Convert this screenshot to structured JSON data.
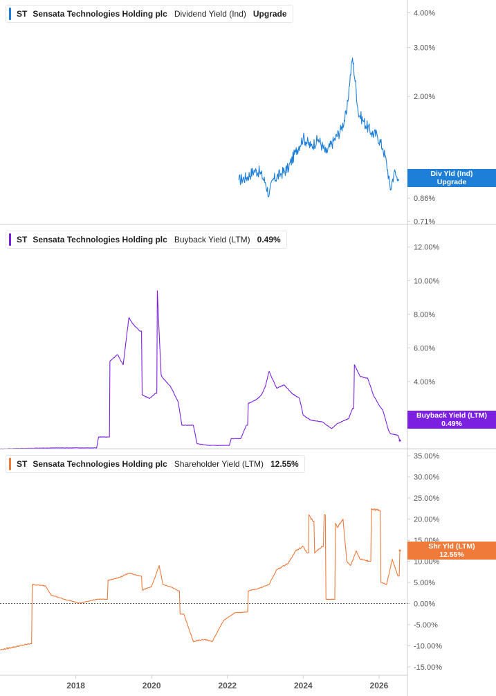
{
  "chart_data": [
    {
      "type": "line",
      "ticker": "ST",
      "company": "Sensata Technologies Holding plc",
      "metric": "Dividend Yield (Ind)",
      "value_label": "Upgrade",
      "tag_line1": "Div Yld (Ind)",
      "tag_line2": "Upgrade",
      "color": "#1e7fd8",
      "y_scale": "log",
      "ylim": [
        0.7,
        4.2
      ],
      "yticks": [
        "4.00%",
        "3.00%",
        "2.00%",
        "0.86%",
        "0.71%"
      ],
      "ytick_values": [
        4.0,
        3.0,
        2.0,
        0.86,
        0.71
      ],
      "x": [
        2022.3,
        2022.5,
        2022.7,
        2022.85,
        2023.0,
        2023.1,
        2023.2,
        2023.4,
        2023.6,
        2023.8,
        2024.0,
        2024.2,
        2024.4,
        2024.6,
        2024.8,
        2025.0,
        2025.15,
        2025.3,
        2025.45,
        2025.6,
        2025.8,
        2025.95,
        2026.1,
        2026.2,
        2026.3,
        2026.4,
        2026.5
      ],
      "values": [
        1.0,
        1.02,
        1.08,
        1.07,
        0.98,
        0.88,
        1.0,
        1.05,
        1.1,
        1.26,
        1.42,
        1.32,
        1.4,
        1.25,
        1.38,
        1.52,
        1.75,
        2.75,
        1.75,
        1.62,
        1.48,
        1.45,
        1.3,
        1.15,
        0.92,
        1.07,
        1.0
      ]
    },
    {
      "type": "line",
      "ticker": "ST",
      "company": "Sensata Technologies Holding plc",
      "metric": "Buyback Yield (LTM)",
      "value_label": "0.49%",
      "tag_line1": "Buyback Yield (LTM)",
      "tag_line2": "0.49%",
      "color": "#7b1fe0",
      "ylim": [
        0.0,
        12.4
      ],
      "yticks": [
        "12.00%",
        "10.00%",
        "8.00%",
        "6.00%",
        "4.00%",
        "2.00%"
      ],
      "ytick_values": [
        12,
        10,
        8,
        6,
        4,
        2
      ],
      "x": [
        2016.0,
        2017.5,
        2018.55,
        2018.6,
        2018.85,
        2018.9,
        2019.1,
        2019.25,
        2019.4,
        2019.55,
        2019.7,
        2019.75,
        2019.95,
        2020.1,
        2020.15,
        2020.25,
        2020.3,
        2020.5,
        2020.7,
        2020.8,
        2021.1,
        2021.2,
        2021.5,
        2022.05,
        2022.1,
        2022.35,
        2022.5,
        2022.55,
        2022.75,
        2022.9,
        2023.0,
        2023.1,
        2023.3,
        2023.5,
        2023.7,
        2023.9,
        2024.0,
        2024.2,
        2024.5,
        2024.75,
        2024.9,
        2025.2,
        2025.3,
        2025.35,
        2025.5,
        2025.7,
        2025.85,
        2026.0,
        2026.1,
        2026.25,
        2026.3,
        2026.5,
        2026.55
      ],
      "values": [
        0.0,
        0.05,
        0.05,
        0.7,
        0.7,
        5.2,
        5.6,
        5.0,
        7.8,
        7.3,
        7.0,
        3.2,
        3.0,
        3.3,
        9.4,
        4.4,
        4.2,
        3.7,
        2.8,
        1.4,
        1.4,
        0.3,
        0.2,
        0.2,
        0.6,
        0.6,
        1.4,
        2.7,
        2.9,
        3.2,
        3.7,
        4.6,
        3.6,
        3.8,
        3.3,
        3.0,
        2.0,
        1.7,
        1.6,
        1.2,
        1.5,
        1.8,
        2.4,
        5.0,
        4.3,
        4.2,
        3.2,
        2.6,
        2.3,
        1.1,
        0.9,
        0.8,
        0.49
      ]
    },
    {
      "type": "line",
      "ticker": "ST",
      "company": "Sensata Technologies Holding plc",
      "metric": "Shareholder Yield (LTM)",
      "value_label": "12.55%",
      "tag_line1": "Shr Yld (LTM)",
      "tag_line2": "12.55%",
      "color": "#ef7a3a",
      "ylim": [
        -16,
        36
      ],
      "yticks": [
        "35.00%",
        "30.00%",
        "25.00%",
        "20.00%",
        "15.00%",
        "10.00%",
        "5.00%",
        "0.00%",
        "-5.00%",
        "-10.00%",
        "-15.00%"
      ],
      "ytick_values": [
        35,
        30,
        25,
        20,
        15,
        10,
        5,
        0,
        -5,
        -10,
        -15
      ],
      "x": [
        2016.0,
        2016.8,
        2016.85,
        2017.2,
        2017.35,
        2017.7,
        2018.1,
        2018.55,
        2018.8,
        2018.85,
        2019.1,
        2019.4,
        2019.7,
        2019.75,
        2020.0,
        2020.2,
        2020.3,
        2020.5,
        2020.7,
        2020.75,
        2020.85,
        2021.1,
        2021.4,
        2021.6,
        2021.9,
        2022.2,
        2022.5,
        2022.55,
        2022.8,
        2023.1,
        2023.3,
        2023.6,
        2023.8,
        2024.0,
        2024.1,
        2024.15,
        2024.25,
        2024.3,
        2024.5,
        2024.55,
        2024.6,
        2024.8,
        2024.85,
        2024.9,
        2025.05,
        2025.15,
        2025.25,
        2025.4,
        2025.5,
        2025.75,
        2025.8,
        2026.0,
        2026.05,
        2026.2,
        2026.35,
        2026.5,
        2026.55
      ],
      "values": [
        -11.0,
        -9.5,
        4.5,
        4.2,
        2.0,
        1.0,
        0.1,
        1.0,
        1.0,
        5.5,
        6.0,
        7.2,
        6.5,
        3.2,
        4.0,
        9.0,
        4.5,
        4.0,
        3.0,
        -2.5,
        -2.5,
        -9.0,
        -8.5,
        -9.0,
        -4.0,
        -2.2,
        -2.0,
        3.0,
        3.5,
        4.5,
        8.0,
        9.5,
        12.5,
        13.5,
        12.0,
        21.0,
        19.5,
        12.0,
        13.5,
        21.0,
        1.0,
        1.0,
        19.0,
        18.0,
        20.0,
        10.0,
        9.0,
        12.5,
        10.5,
        10.0,
        22.5,
        22.0,
        5.0,
        4.5,
        10.5,
        6.5,
        12.55
      ]
    }
  ],
  "x_axis": {
    "range": [
      2016.0,
      2026.75
    ],
    "ticks": [
      "2018",
      "2020",
      "2022",
      "2024",
      "2026"
    ],
    "tick_values": [
      2018,
      2020,
      2022,
      2024,
      2026
    ]
  }
}
